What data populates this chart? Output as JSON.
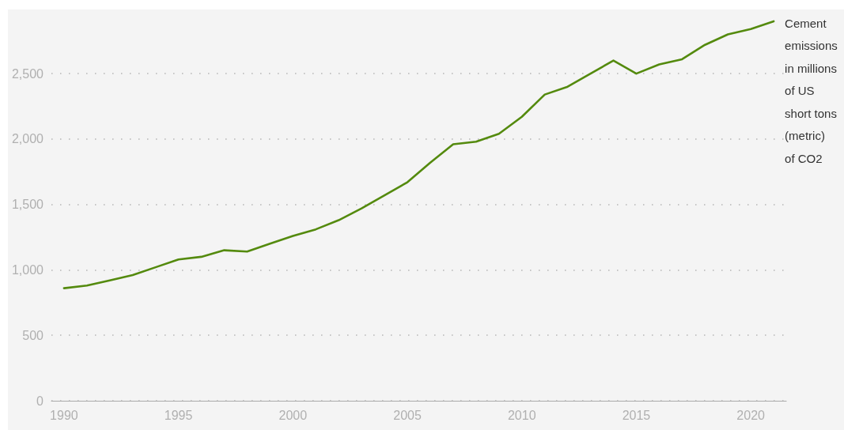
{
  "chart_data": {
    "type": "line",
    "x": [
      1990,
      1991,
      1992,
      1993,
      1994,
      1995,
      1996,
      1997,
      1998,
      1999,
      2000,
      2001,
      2002,
      2003,
      2004,
      2005,
      2006,
      2007,
      2008,
      2009,
      2010,
      2011,
      2012,
      2013,
      2014,
      2015,
      2016,
      2017,
      2018,
      2019,
      2020,
      2021
    ],
    "series": [
      {
        "name": "Cement emissions in millions of US short tons (metric) of CO2",
        "color": "#548a0e",
        "values": [
          860,
          880,
          920,
          960,
          1020,
          1080,
          1100,
          1150,
          1140,
          1200,
          1260,
          1310,
          1380,
          1470,
          1570,
          1670,
          1820,
          1960,
          1980,
          2040,
          2170,
          2340,
          2400,
          2500,
          2600,
          2500,
          2570,
          2610,
          2720,
          2800,
          2840,
          2900
        ]
      }
    ],
    "xlim": [
      1989.45,
      2021.55
    ],
    "xticks": [
      1990,
      1995,
      2000,
      2005,
      2010,
      2015,
      2020
    ],
    "ylim": [
      0,
      2990
    ],
    "yticks": [
      0,
      500,
      {
        "value": 1000,
        "label": "1,000"
      },
      {
        "value": 1500,
        "label": "1,500"
      },
      {
        "value": 2000,
        "label": "2,000"
      },
      {
        "value": 2500,
        "label": "2,500"
      }
    ],
    "grid": "y",
    "legend": false,
    "marker": "none",
    "line_style": "solid"
  }
}
